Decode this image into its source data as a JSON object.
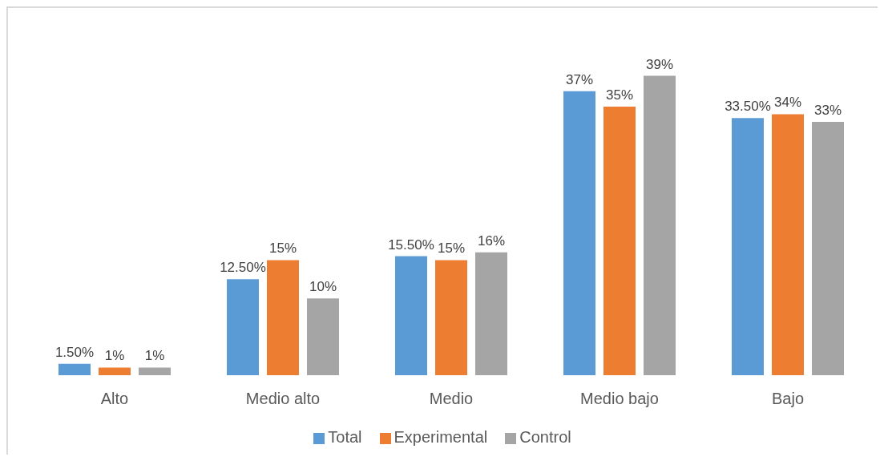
{
  "chart_data": {
    "type": "bar",
    "categories": [
      "Alto",
      "Medio alto",
      "Medio",
      "Medio bajo",
      "Bajo"
    ],
    "series": [
      {
        "name": "Total",
        "color": "#5b9bd5",
        "values": [
          1.5,
          12.5,
          15.5,
          37,
          33.5
        ],
        "value_labels": [
          "1.50%",
          "12.50%",
          "15.50%",
          "37%",
          "33.50%"
        ]
      },
      {
        "name": "Experimental",
        "color": "#ed7d31",
        "values": [
          1,
          15,
          15,
          35,
          34
        ],
        "value_labels": [
          "1%",
          "15%",
          "15%",
          "35%",
          "34%"
        ]
      },
      {
        "name": "Control",
        "color": "#a5a5a5",
        "values": [
          1,
          10,
          16,
          39,
          33
        ],
        "value_labels": [
          "1%",
          "10%",
          "16%",
          "39%",
          "33%"
        ]
      }
    ],
    "tick_labels": "x",
    "legend": "bottom"
  }
}
